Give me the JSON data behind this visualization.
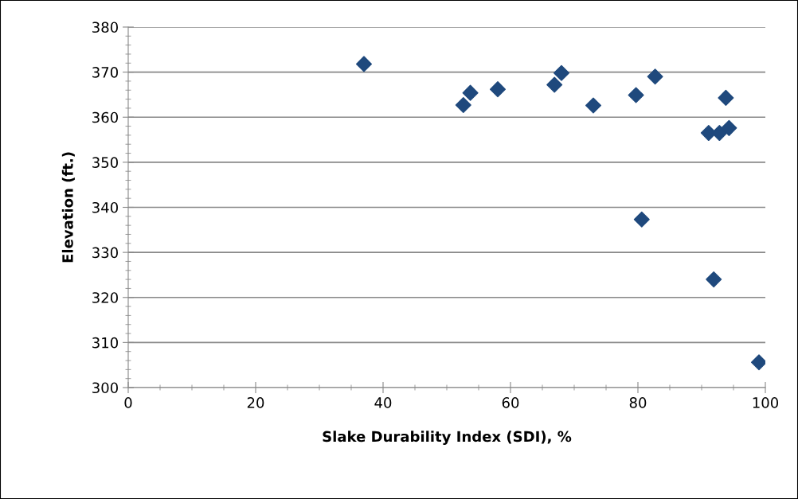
{
  "chart_data": {
    "type": "scatter",
    "xlabel": "Slake Durability Index (SDI), %",
    "ylabel": "Elevation (ft.)",
    "x": [
      37.0,
      52.6,
      53.7,
      58.0,
      66.9,
      68.0,
      73.0,
      79.7,
      82.7,
      93.8,
      91.1,
      92.8,
      94.3,
      80.6,
      91.9,
      99.0
    ],
    "series": [
      {
        "color": "#1f497d",
        "values": [
          371.8,
          362.7,
          365.4,
          366.2,
          367.2,
          369.8,
          362.6,
          364.9,
          369.0,
          364.3,
          356.5,
          356.5,
          357.6,
          337.3,
          324.0,
          305.6
        ]
      }
    ],
    "xlim": [
      0,
      100
    ],
    "xticks": [
      0,
      20,
      40,
      60,
      80,
      100
    ],
    "ylim": [
      300,
      380
    ],
    "yticks": [
      300,
      310,
      320,
      330,
      340,
      350,
      360,
      370,
      380
    ],
    "grid": "y",
    "marker": "diamond",
    "legend": false
  }
}
